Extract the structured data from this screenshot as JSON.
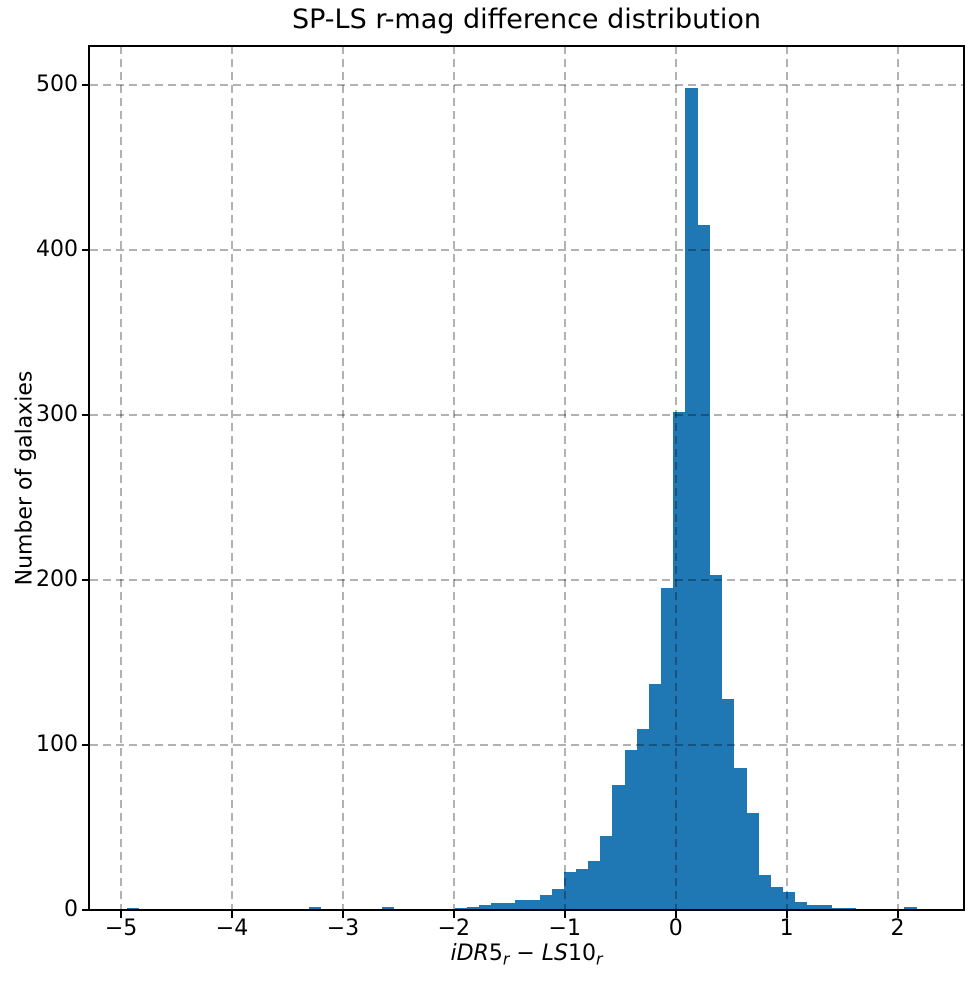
{
  "figure": {
    "background": "#ffffff"
  },
  "chart_data": {
    "type": "bar",
    "subtype": "histogram",
    "title": "SP-LS r-mag difference distribution",
    "xlabel": "iDR5_r − LS10_r",
    "xlabel_parts": [
      {
        "text": "iDR",
        "italic": true,
        "sub": false
      },
      {
        "text": "5",
        "italic": false,
        "sub": false
      },
      {
        "text": "r",
        "italic": true,
        "sub": true
      },
      {
        "text": " − ",
        "italic": false,
        "sub": false
      },
      {
        "text": "LS",
        "italic": true,
        "sub": false
      },
      {
        "text": "10",
        "italic": false,
        "sub": false
      },
      {
        "text": "r",
        "italic": true,
        "sub": true
      }
    ],
    "ylabel": "Number of galaxies",
    "xlim": [
      -5.28,
      2.59
    ],
    "ylim": [
      0,
      523.6
    ],
    "x_ticks": [
      -5,
      -4,
      -3,
      -2,
      -1,
      0,
      1,
      2
    ],
    "x_tick_labels": [
      "−5",
      "−4",
      "−3",
      "−2",
      "−1",
      "0",
      "1",
      "2"
    ],
    "y_ticks": [
      0,
      100,
      200,
      300,
      400,
      500
    ],
    "y_tick_labels": [
      "0",
      "100",
      "200",
      "300",
      "400",
      "500"
    ],
    "grid": true,
    "grid_style": "dashed",
    "grid_above_bars": true,
    "bin_start": -4.95,
    "bin_width": 0.1095,
    "counts": [
      1,
      0,
      0,
      0,
      0,
      0,
      0,
      0,
      0,
      0,
      0,
      0,
      0,
      0,
      0,
      2,
      0,
      0,
      0,
      0,
      0,
      2,
      0,
      0,
      0,
      0,
      0,
      1,
      2,
      3,
      4,
      4,
      6,
      6,
      9,
      13,
      23,
      25,
      30,
      45,
      76,
      97,
      110,
      137,
      195,
      302,
      498,
      415,
      203,
      128,
      86,
      59,
      21,
      14,
      11,
      5,
      3,
      3,
      1,
      1,
      0,
      0,
      0,
      0,
      2
    ],
    "peak_count": 498,
    "colors": {
      "bar": "#1f77b4",
      "grid": "rgba(0,0,0,0.30)",
      "spine": "#000000",
      "text": "#000000"
    }
  }
}
